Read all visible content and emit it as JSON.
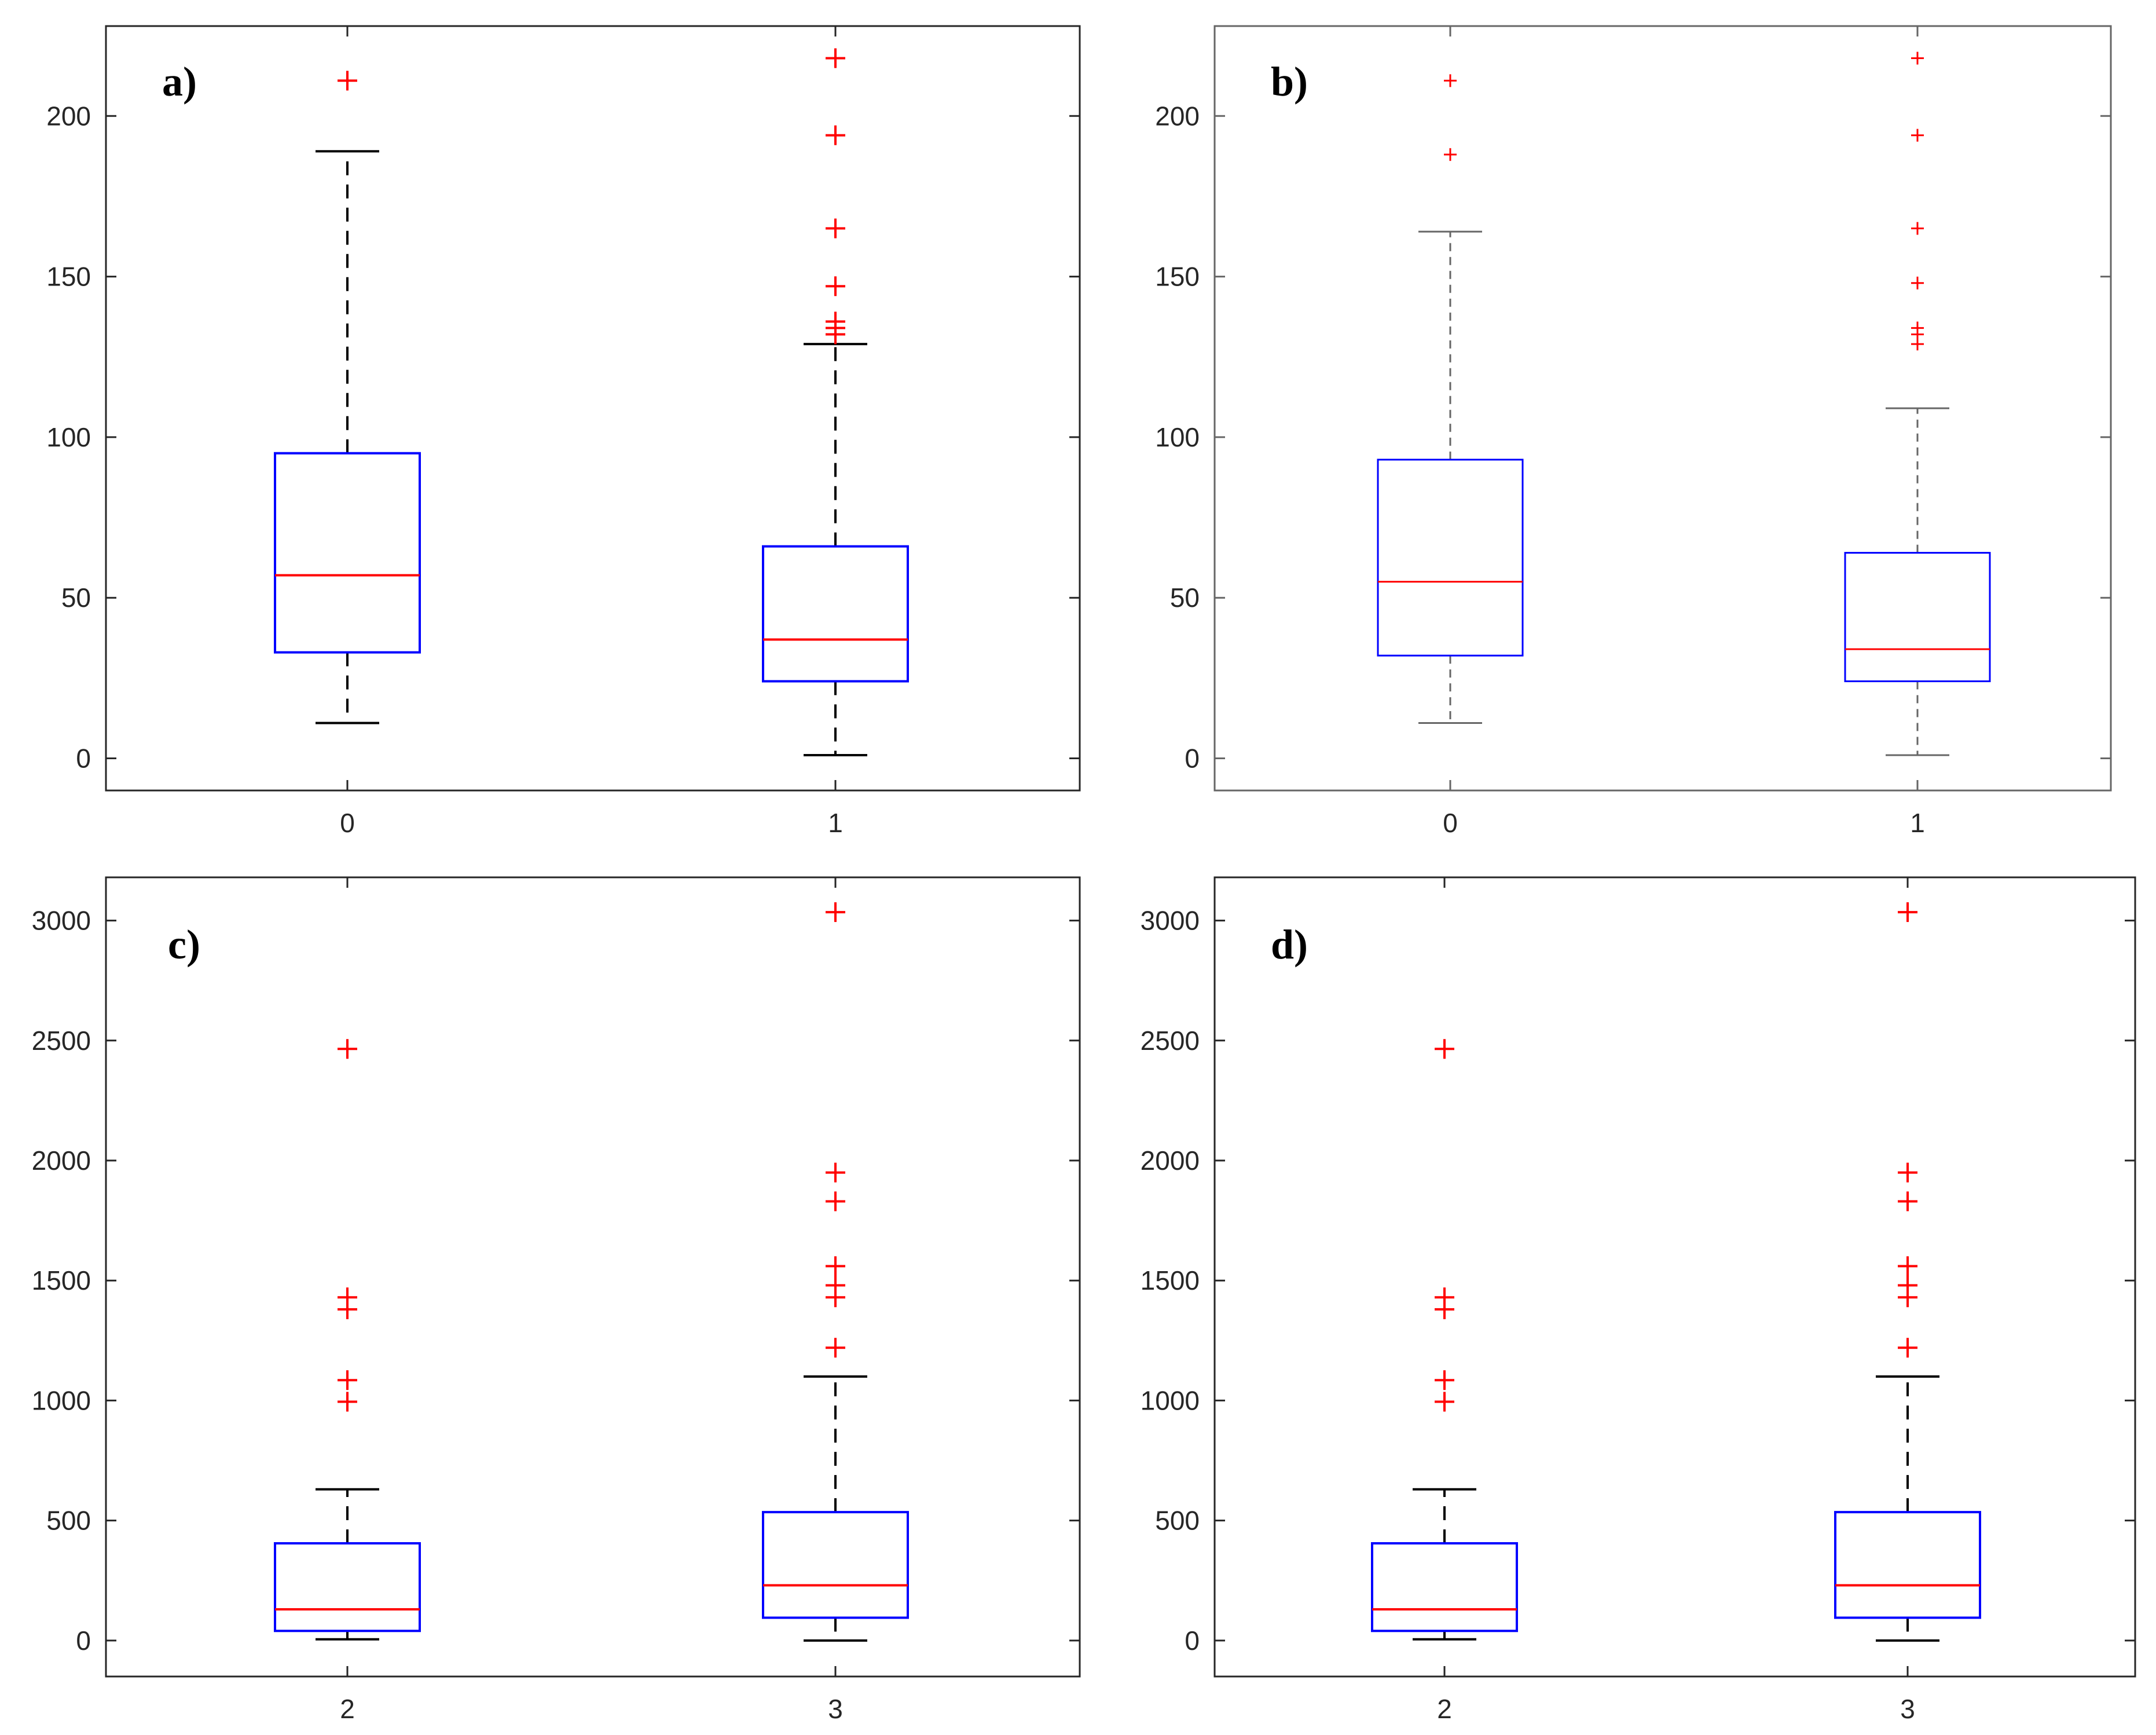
{
  "colors": {
    "box": "#0000ff",
    "median": "#ff0000",
    "outlier": "#ff0000",
    "whisker": "#000000",
    "axis": "#262626",
    "axis_light": "#666666"
  },
  "chart_data": [
    {
      "type": "boxplot",
      "panel_label": "a)",
      "ylim": [
        -10,
        228
      ],
      "yticks": [
        0,
        50,
        100,
        150,
        200
      ],
      "categories": [
        "0",
        "1"
      ],
      "boxes": [
        {
          "category": "0",
          "whisker_low": 11,
          "q1": 33,
          "median": 57,
          "q3": 95,
          "whisker_high": 189,
          "outliers": [
            211
          ]
        },
        {
          "category": "1",
          "whisker_low": 1,
          "q1": 24,
          "median": 37,
          "q3": 66,
          "whisker_high": 129,
          "outliers": [
            132,
            134,
            136,
            147,
            165,
            194,
            218
          ]
        }
      ]
    },
    {
      "type": "boxplot",
      "panel_label": "b)",
      "ylim": [
        -10,
        228
      ],
      "yticks": [
        0,
        50,
        100,
        150,
        200
      ],
      "categories": [
        "0",
        "1"
      ],
      "boxes": [
        {
          "category": "0",
          "whisker_low": 11,
          "q1": 32,
          "median": 55,
          "q3": 93,
          "whisker_high": 164,
          "outliers": [
            188,
            211
          ]
        },
        {
          "category": "1",
          "whisker_low": 1,
          "q1": 24,
          "median": 34,
          "q3": 64,
          "whisker_high": 109,
          "outliers": [
            129,
            132,
            134,
            148,
            165,
            194,
            218
          ]
        }
      ]
    },
    {
      "type": "boxplot",
      "panel_label": "c)",
      "ylim": [
        -150,
        3180
      ],
      "yticks": [
        0,
        500,
        1000,
        1500,
        2000,
        2500,
        3000
      ],
      "categories": [
        "2",
        "3"
      ],
      "boxes": [
        {
          "category": "2",
          "whisker_low": 5,
          "q1": 40,
          "median": 130,
          "q3": 405,
          "whisker_high": 630,
          "outliers": [
            995,
            1085,
            1380,
            1430,
            2465
          ]
        },
        {
          "category": "3",
          "whisker_low": 0,
          "q1": 95,
          "median": 230,
          "q3": 535,
          "whisker_high": 1100,
          "outliers": [
            1220,
            1430,
            1480,
            1560,
            1830,
            1950,
            3035
          ]
        }
      ]
    },
    {
      "type": "boxplot",
      "panel_label": "d)",
      "ylim": [
        -150,
        3180
      ],
      "yticks": [
        0,
        500,
        1000,
        1500,
        2000,
        2500,
        3000
      ],
      "categories": [
        "2",
        "3"
      ],
      "boxes": [
        {
          "category": "2",
          "whisker_low": 5,
          "q1": 40,
          "median": 130,
          "q3": 405,
          "whisker_high": 630,
          "outliers": [
            995,
            1085,
            1380,
            1430,
            2465
          ]
        },
        {
          "category": "3",
          "whisker_low": 0,
          "q1": 95,
          "median": 230,
          "q3": 535,
          "whisker_high": 1100,
          "outliers": [
            1220,
            1430,
            1480,
            1560,
            1830,
            1950,
            3035
          ]
        }
      ]
    }
  ]
}
